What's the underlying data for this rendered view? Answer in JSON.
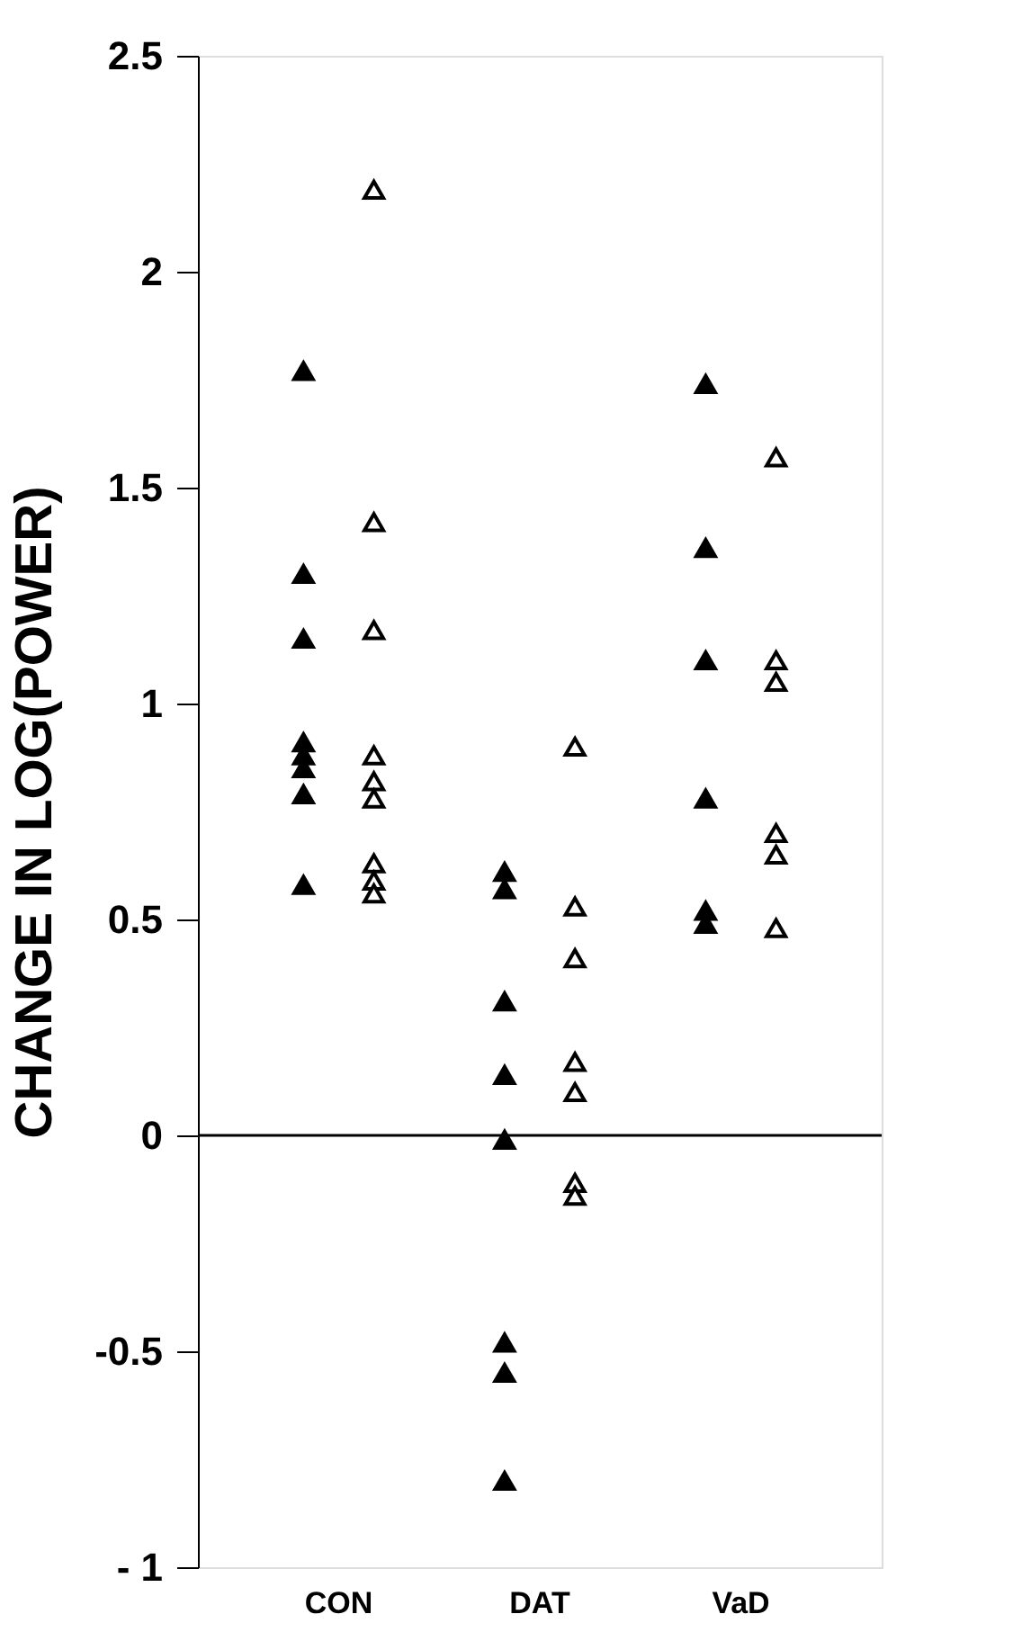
{
  "chart_data": {
    "type": "scatter",
    "ylabel": "CHANGE IN LOG(POWER)",
    "categories": [
      "CON",
      "DAT",
      "VaD"
    ],
    "series": [
      {
        "color": "#000000",
        "x": [
          "CON",
          "CON",
          "CON",
          "CON",
          "CON",
          "CON",
          "CON",
          "CON",
          "DAT",
          "DAT",
          "DAT",
          "DAT",
          "DAT",
          "DAT",
          "DAT",
          "DAT",
          "VaD",
          "VaD",
          "VaD",
          "VaD",
          "VaD",
          "VaD"
        ],
        "values": [
          1.77,
          1.3,
          1.15,
          0.91,
          0.88,
          0.85,
          0.79,
          0.58,
          0.61,
          0.57,
          0.31,
          0.14,
          -0.01,
          -0.48,
          -0.55,
          -0.8,
          1.74,
          1.36,
          1.1,
          0.78,
          0.52,
          0.49
        ]
      },
      {
        "color": "#000000",
        "x": [
          "CON",
          "CON",
          "CON",
          "CON",
          "CON",
          "CON",
          "CON",
          "CON",
          "CON",
          "DAT",
          "DAT",
          "DAT",
          "DAT",
          "DAT",
          "DAT",
          "DAT",
          "VaD",
          "VaD",
          "VaD",
          "VaD",
          "VaD",
          "VaD"
        ],
        "values": [
          2.19,
          1.42,
          1.17,
          0.88,
          0.82,
          0.78,
          0.63,
          0.59,
          0.56,
          0.9,
          0.53,
          0.41,
          0.17,
          0.1,
          -0.11,
          -0.14,
          1.57,
          1.1,
          1.05,
          0.7,
          0.65,
          0.48
        ]
      }
    ],
    "marker": "triangle",
    "ylim": [
      -1,
      2.5
    ],
    "yticks": [
      {
        "value": -1,
        "label": "- 1"
      },
      -0.5,
      0,
      0.5,
      1,
      1.5,
      2,
      2.5
    ],
    "ref_lines": [
      {
        "axis": "y",
        "value": 0,
        "label": null
      }
    ],
    "grid": false
  }
}
